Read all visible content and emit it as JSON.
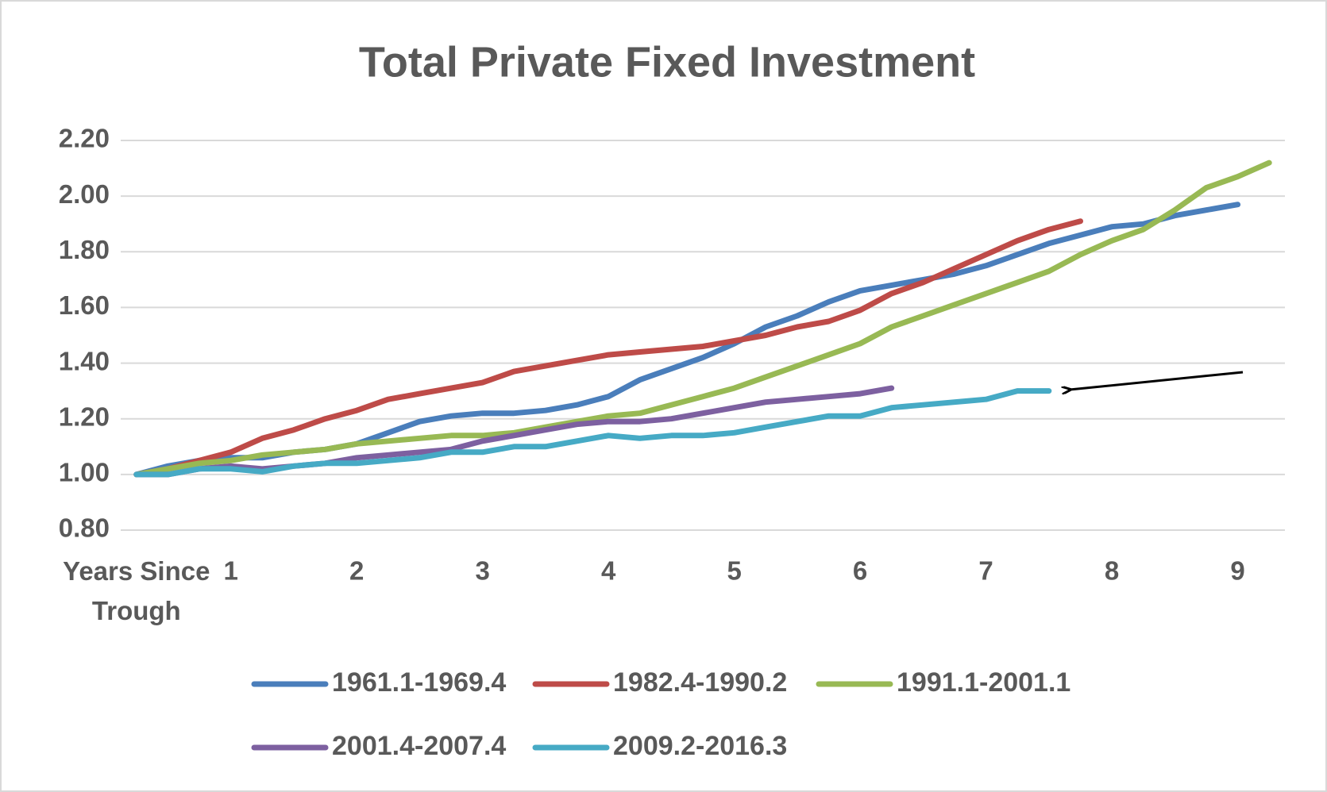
{
  "chart_data": {
    "type": "line",
    "title": "Total Private Fixed Investment",
    "categories": [
      "Years Since Trough",
      null,
      null,
      "1",
      null,
      null,
      null,
      "2",
      null,
      null,
      null,
      "3",
      null,
      null,
      null,
      "4",
      null,
      null,
      null,
      "5",
      null,
      null,
      null,
      "6",
      null,
      null,
      null,
      "7",
      null,
      null,
      null,
      "8",
      null,
      null,
      null,
      "9",
      null
    ],
    "series": [
      {
        "name": "1961.1-1969.4",
        "color": "#4a7ebb",
        "values": [
          1.0,
          1.03,
          1.05,
          1.06,
          1.06,
          1.08,
          1.09,
          1.11,
          1.15,
          1.19,
          1.21,
          1.22,
          1.22,
          1.23,
          1.25,
          1.28,
          1.34,
          1.38,
          1.42,
          1.47,
          1.53,
          1.57,
          1.62,
          1.66,
          1.68,
          1.7,
          1.72,
          1.75,
          1.79,
          1.83,
          1.86,
          1.89,
          1.9,
          1.93,
          1.95,
          1.97,
          null
        ]
      },
      {
        "name": "1982.4-1990.2",
        "color": "#be4b48",
        "values": [
          1.0,
          1.02,
          1.05,
          1.08,
          1.13,
          1.16,
          1.2,
          1.23,
          1.27,
          1.29,
          1.31,
          1.33,
          1.37,
          1.39,
          1.41,
          1.43,
          1.44,
          1.45,
          1.46,
          1.48,
          1.5,
          1.53,
          1.55,
          1.59,
          1.65,
          1.69,
          1.74,
          1.79,
          1.84,
          1.88,
          1.91,
          null,
          null,
          null,
          null,
          null,
          null
        ]
      },
      {
        "name": "1991.1-2001.1",
        "color": "#98b954",
        "values": [
          1.0,
          1.02,
          1.04,
          1.05,
          1.07,
          1.08,
          1.09,
          1.11,
          1.12,
          1.13,
          1.14,
          1.14,
          1.15,
          1.17,
          1.19,
          1.21,
          1.22,
          1.25,
          1.28,
          1.31,
          1.35,
          1.39,
          1.43,
          1.47,
          1.53,
          1.57,
          1.61,
          1.65,
          1.69,
          1.73,
          1.79,
          1.84,
          1.88,
          1.95,
          2.03,
          2.07,
          2.12
        ]
      },
      {
        "name": "2001.4-2007.4",
        "color": "#7d60a0",
        "values": [
          1.0,
          1.0,
          1.02,
          1.03,
          1.02,
          1.03,
          1.04,
          1.06,
          1.07,
          1.08,
          1.09,
          1.12,
          1.14,
          1.16,
          1.18,
          1.19,
          1.19,
          1.2,
          1.22,
          1.24,
          1.26,
          1.27,
          1.28,
          1.29,
          1.31,
          null,
          null,
          null,
          null,
          null,
          null,
          null,
          null,
          null,
          null,
          null,
          null
        ]
      },
      {
        "name": "2009.2-2016.3",
        "color": "#46aac5",
        "values": [
          1.0,
          1.0,
          1.02,
          1.02,
          1.01,
          1.03,
          1.04,
          1.04,
          1.05,
          1.06,
          1.08,
          1.08,
          1.1,
          1.1,
          1.12,
          1.14,
          1.13,
          1.14,
          1.14,
          1.15,
          1.17,
          1.19,
          1.21,
          1.21,
          1.24,
          1.25,
          1.26,
          1.27,
          1.3,
          1.3,
          null,
          null,
          null,
          null,
          null,
          null,
          null
        ]
      }
    ],
    "ylim": [
      0.8,
      2.2
    ],
    "yticks": [
      {
        "value": 0.8,
        "label": "0.80"
      },
      {
        "value": 1.0,
        "label": "1.00"
      },
      {
        "value": 1.2,
        "label": "1.20"
      },
      {
        "value": 1.4,
        "label": "1.40"
      },
      {
        "value": 1.6,
        "label": "1.60"
      },
      {
        "value": 1.8,
        "label": "1.80"
      },
      {
        "value": 2.0,
        "label": "2.00"
      },
      {
        "value": 2.2,
        "label": "2.20"
      }
    ],
    "grid": true,
    "legend": "bottom"
  }
}
